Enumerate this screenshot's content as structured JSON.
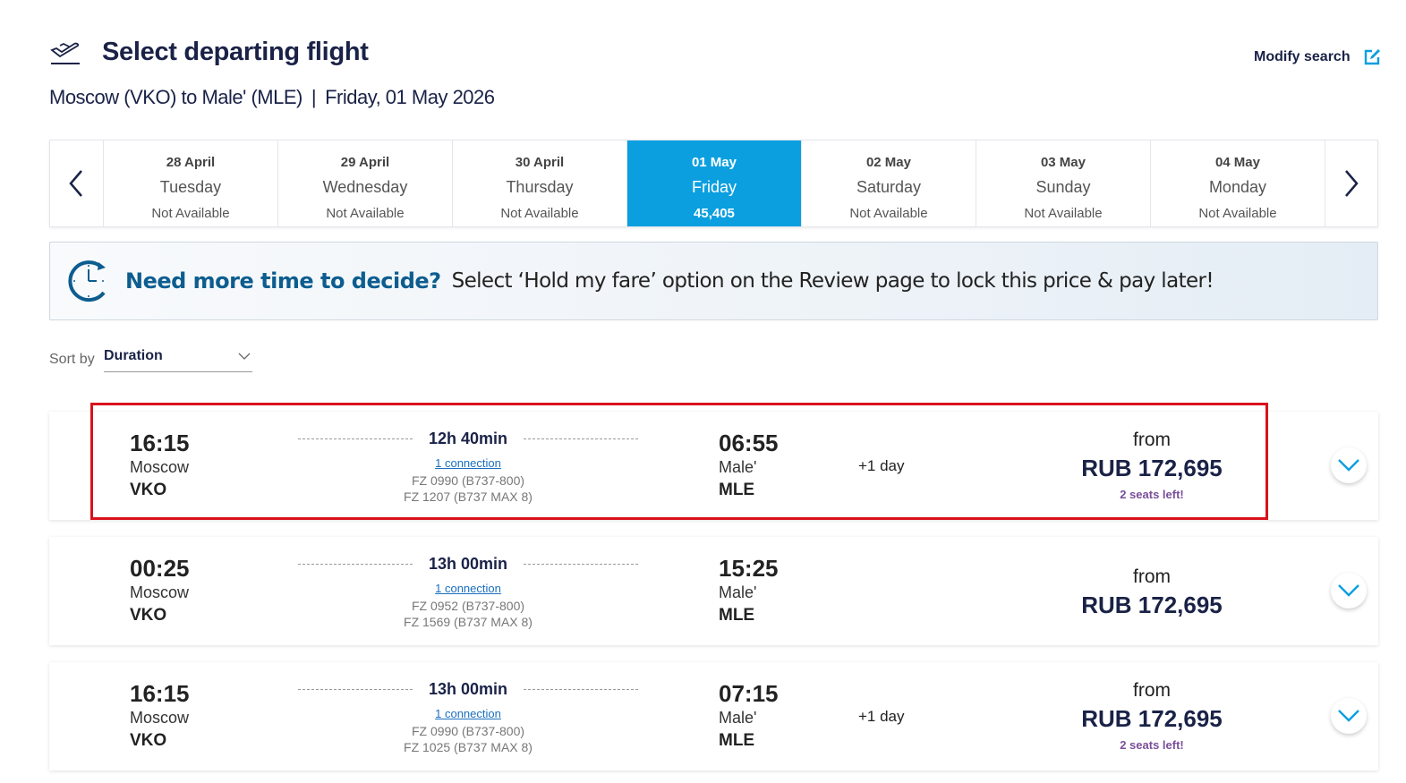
{
  "header": {
    "title": "Select departing flight",
    "route": "Moscow (VKO) to Male' (MLE)",
    "separator": "|",
    "date": "Friday, 01 May 2026",
    "modify_label": "Modify search"
  },
  "dates": [
    {
      "date": "28 April",
      "weekday": "Tuesday",
      "status": "Not Available"
    },
    {
      "date": "29 April",
      "weekday": "Wednesday",
      "status": "Not Available"
    },
    {
      "date": "30 April",
      "weekday": "Thursday",
      "status": "Not Available"
    },
    {
      "date": "01 May",
      "weekday": "Friday",
      "status": "45,405",
      "selected": true
    },
    {
      "date": "02 May",
      "weekday": "Saturday",
      "status": "Not Available"
    },
    {
      "date": "03 May",
      "weekday": "Sunday",
      "status": "Not Available"
    },
    {
      "date": "04 May",
      "weekday": "Monday",
      "status": "Not Available"
    }
  ],
  "banner": {
    "headline": "Need more time to decide?",
    "text": "Select ‘Hold my fare’ option on the Review page to lock this price & pay later!"
  },
  "sort": {
    "label": "Sort by",
    "value": "Duration"
  },
  "flights": [
    {
      "dep_time": "16:15",
      "dep_city": "Moscow",
      "dep_code": "VKO",
      "duration": "12h 40min",
      "connection": "1 connection",
      "segments": [
        "FZ 0990 (B737-800)",
        "FZ 1207 (B737 MAX 8)"
      ],
      "arr_time": "06:55",
      "arr_city": "Male'",
      "arr_code": "MLE",
      "day_offset": "+1 day",
      "from": "from",
      "price": "RUB 172,695",
      "seats": "2 seats left!"
    },
    {
      "dep_time": "00:25",
      "dep_city": "Moscow",
      "dep_code": "VKO",
      "duration": "13h 00min",
      "connection": "1 connection",
      "segments": [
        "FZ 0952 (B737-800)",
        "FZ 1569 (B737 MAX 8)"
      ],
      "arr_time": "15:25",
      "arr_city": "Male'",
      "arr_code": "MLE",
      "day_offset": "",
      "from": "from",
      "price": "RUB 172,695",
      "seats": ""
    },
    {
      "dep_time": "16:15",
      "dep_city": "Moscow",
      "dep_code": "VKO",
      "duration": "13h 00min",
      "connection": "1 connection",
      "segments": [
        "FZ 0990 (B737-800)",
        "FZ 1025 (B737 MAX 8)"
      ],
      "arr_time": "07:15",
      "arr_city": "Male'",
      "arr_code": "MLE",
      "day_offset": "+1 day",
      "from": "from",
      "price": "RUB 172,695",
      "seats": "2 seats left!"
    }
  ],
  "colors": {
    "navy": "#1a2247",
    "accent": "#0b9fe0",
    "banner_heading": "#0d5d8f",
    "seats": "#7a4f9a",
    "highlight": "#d9121b"
  }
}
